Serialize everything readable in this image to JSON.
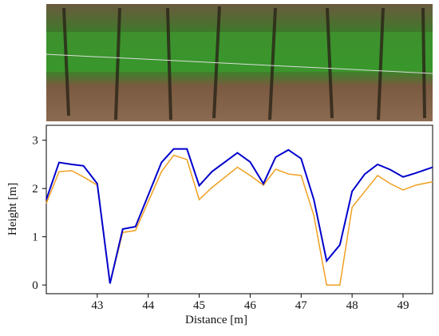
{
  "chart_data": {
    "type": "line",
    "x_label": "Distance [m]",
    "y_label": "Height [m]",
    "x": [
      42.0,
      42.25,
      42.5,
      42.73,
      43.0,
      43.25,
      43.5,
      43.75,
      44.26,
      44.5,
      44.76,
      45.0,
      45.25,
      45.75,
      46.0,
      46.26,
      46.5,
      46.75,
      47.0,
      47.25,
      47.5,
      47.76,
      48.0,
      48.25,
      48.5,
      48.75,
      49.0,
      49.25,
      49.58
    ],
    "series": [
      {
        "color": "#0000cc",
        "values": [
          1.77,
          2.54,
          2.5,
          2.47,
          2.1,
          0.03,
          1.16,
          1.21,
          2.54,
          2.82,
          2.82,
          2.06,
          2.35,
          2.74,
          2.55,
          2.1,
          2.65,
          2.8,
          2.62,
          1.77,
          0.5,
          0.83,
          1.94,
          2.3,
          2.5,
          2.39,
          2.24,
          2.32,
          2.44
        ]
      },
      {
        "color": "#f0a020",
        "values": [
          1.69,
          2.35,
          2.37,
          2.24,
          2.07,
          0.03,
          1.09,
          1.13,
          2.35,
          2.69,
          2.6,
          1.77,
          2.02,
          2.44,
          2.27,
          2.07,
          2.4,
          2.3,
          2.27,
          1.44,
          0,
          0,
          1.61,
          1.94,
          2.27,
          2.1,
          1.97,
          2.07,
          2.14
        ]
      }
    ],
    "xlim": [
      42.0,
      49.58
    ],
    "ylim": [
      -0.18,
      3.31
    ],
    "xticks": [
      43,
      44,
      45,
      46,
      47,
      48,
      49
    ],
    "yticks": [
      0,
      1,
      2,
      3
    ]
  }
}
